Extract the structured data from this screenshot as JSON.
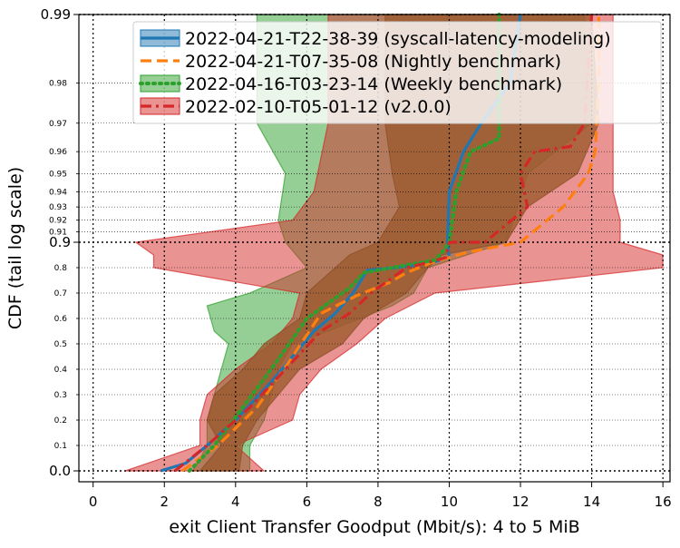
{
  "chart_data": {
    "type": "line",
    "xlabel": "exit Client Transfer Goodput (Mbit/s): 4 to 5 MiB",
    "ylabel": "CDF (tail log scale)",
    "xlim": [
      -0.4,
      16.2
    ],
    "x_ticks": [
      0,
      2,
      4,
      6,
      8,
      10,
      12,
      14,
      16
    ],
    "x_tick_labels": [
      "0",
      "2",
      "4",
      "6",
      "8",
      "10",
      "12",
      "14",
      "16"
    ],
    "y_scale": "tail-log (linear 0 to 0.9, logarithmic tail 0.9 to 0.99)",
    "y_major_ticks": [
      0.0,
      0.9,
      0.99
    ],
    "y_major_labels": [
      "0.0",
      "0.9",
      "0.99"
    ],
    "y_minor_ticks": [
      0.1,
      0.2,
      0.3,
      0.4,
      0.5,
      0.6,
      0.7,
      0.8,
      0.91,
      0.92,
      0.93,
      0.94,
      0.95,
      0.96,
      0.97,
      0.98
    ],
    "y_minor_labels": [
      "0.1",
      "0.2",
      "0.3",
      "0.4",
      "0.5",
      "0.6",
      "0.7",
      "0.8",
      "0.91",
      "0.92",
      "0.93",
      "0.94",
      "0.95",
      "0.96",
      "0.97",
      "0.98"
    ],
    "grid": true,
    "legend_position": "top-right",
    "series": [
      {
        "name": "2022-04-21-T22-38-39 (syscall-latency-modeling)",
        "color": "#1f77b4",
        "line_style": "solid",
        "band": [
          [
            3.0,
            4.1,
            0.0
          ],
          [
            3.6,
            4.2,
            0.1
          ],
          [
            3.2,
            4.6,
            0.2
          ],
          [
            3.4,
            5.2,
            0.3
          ],
          [
            4.2,
            5.8,
            0.4
          ],
          [
            4.8,
            7.0,
            0.5
          ],
          [
            5.8,
            7.6,
            0.6
          ],
          [
            6.0,
            8.8,
            0.7
          ],
          [
            6.8,
            9.4,
            0.8
          ],
          [
            7.2,
            9.8,
            0.85
          ],
          [
            8.0,
            11.6,
            0.9
          ],
          [
            8.6,
            12.2,
            0.93
          ],
          [
            8.4,
            13.6,
            0.95
          ],
          [
            8.2,
            14.2,
            0.97
          ],
          [
            8.2,
            14.0,
            0.99
          ]
        ],
        "points": [
          [
            1.9,
            0.0
          ],
          [
            2.6,
            0.03
          ],
          [
            3.2,
            0.1
          ],
          [
            4.0,
            0.2
          ],
          [
            5.0,
            0.35
          ],
          [
            5.6,
            0.45
          ],
          [
            6.2,
            0.55
          ],
          [
            6.8,
            0.62
          ],
          [
            7.3,
            0.7
          ],
          [
            7.7,
            0.79
          ],
          [
            8.5,
            0.8
          ],
          [
            9.5,
            0.82
          ],
          [
            10.0,
            0.84
          ],
          [
            9.95,
            0.9
          ],
          [
            10.0,
            0.94
          ],
          [
            10.4,
            0.96
          ],
          [
            10.9,
            0.97
          ],
          [
            11.7,
            0.98
          ],
          [
            12.0,
            0.99
          ]
        ]
      },
      {
        "name": "2022-04-21-T07-35-08 (Nightly benchmark)",
        "color": "#ff7f0e",
        "line_style": "dashed",
        "points": [
          [
            2.5,
            0.0
          ],
          [
            3.5,
            0.1
          ],
          [
            4.6,
            0.25
          ],
          [
            5.6,
            0.45
          ],
          [
            6.4,
            0.62
          ],
          [
            7.4,
            0.69
          ],
          [
            8.3,
            0.74
          ],
          [
            8.8,
            0.78
          ],
          [
            9.5,
            0.82
          ],
          [
            10.5,
            0.86
          ],
          [
            12.0,
            0.9
          ],
          [
            13.2,
            0.93
          ],
          [
            13.9,
            0.95
          ],
          [
            14.1,
            0.96
          ],
          [
            14.2,
            0.98
          ],
          [
            14.2,
            0.99
          ]
        ]
      },
      {
        "name": "2022-04-16-T03-23-14 (Weekly benchmark)",
        "color": "#2ca02c",
        "line_style": "dotted",
        "band": [
          [
            2.8,
            4.4,
            0.0
          ],
          [
            3.2,
            4.4,
            0.1
          ],
          [
            3.2,
            4.8,
            0.2
          ],
          [
            3.4,
            5.0,
            0.3
          ],
          [
            3.6,
            5.2,
            0.4
          ],
          [
            3.8,
            5.6,
            0.5
          ],
          [
            3.4,
            6.6,
            0.55
          ],
          [
            3.2,
            8.4,
            0.65
          ],
          [
            4.4,
            9.0,
            0.7
          ],
          [
            6.0,
            9.4,
            0.8
          ],
          [
            5.4,
            11.6,
            0.9
          ],
          [
            5.2,
            11.8,
            0.92
          ],
          [
            5.4,
            12.2,
            0.95
          ],
          [
            4.6,
            14.0,
            0.97
          ],
          [
            4.6,
            13.8,
            0.99
          ]
        ],
        "points": [
          [
            2.7,
            0.0
          ],
          [
            3.4,
            0.1
          ],
          [
            4.2,
            0.25
          ],
          [
            5.0,
            0.4
          ],
          [
            6.0,
            0.6
          ],
          [
            6.6,
            0.66
          ],
          [
            7.2,
            0.72
          ],
          [
            7.6,
            0.78
          ],
          [
            8.4,
            0.8
          ],
          [
            9.6,
            0.83
          ],
          [
            9.8,
            0.86
          ],
          [
            10.0,
            0.9
          ],
          [
            10.2,
            0.94
          ],
          [
            10.6,
            0.96
          ],
          [
            11.4,
            0.965
          ],
          [
            11.4,
            0.99
          ]
        ]
      },
      {
        "name": "2022-02-10-T05-01-12 (v2.0.0)",
        "color": "#d62728",
        "line_style": "dashdot",
        "band": [
          [
            0.9,
            4.8,
            0.0
          ],
          [
            3.0,
            4.0,
            0.1
          ],
          [
            3.0,
            5.6,
            0.2
          ],
          [
            3.2,
            5.8,
            0.3
          ],
          [
            4.0,
            6.4,
            0.4
          ],
          [
            5.0,
            7.4,
            0.5
          ],
          [
            5.6,
            8.2,
            0.6
          ],
          [
            5.8,
            9.6,
            0.7
          ],
          [
            1.7,
            16.0,
            0.8
          ],
          [
            1.7,
            16.0,
            0.85
          ],
          [
            1.2,
            14.8,
            0.9
          ],
          [
            5.6,
            14.8,
            0.92
          ],
          [
            6.2,
            14.6,
            0.94
          ],
          [
            6.6,
            14.6,
            0.97
          ],
          [
            6.6,
            14.6,
            0.99
          ]
        ],
        "points": [
          [
            2.3,
            0.0
          ],
          [
            3.2,
            0.1
          ],
          [
            4.4,
            0.25
          ],
          [
            5.4,
            0.4
          ],
          [
            6.4,
            0.55
          ],
          [
            7.2,
            0.62
          ],
          [
            7.8,
            0.7
          ],
          [
            8.3,
            0.75
          ],
          [
            8.8,
            0.8
          ],
          [
            9.4,
            0.82
          ],
          [
            9.9,
            0.84
          ],
          [
            10.0,
            0.9
          ],
          [
            11.0,
            0.9
          ],
          [
            12.2,
            0.93
          ],
          [
            12.0,
            0.95
          ],
          [
            12.4,
            0.96
          ],
          [
            13.4,
            0.962
          ],
          [
            13.8,
            0.97
          ],
          [
            14.0,
            0.99
          ]
        ]
      }
    ]
  }
}
